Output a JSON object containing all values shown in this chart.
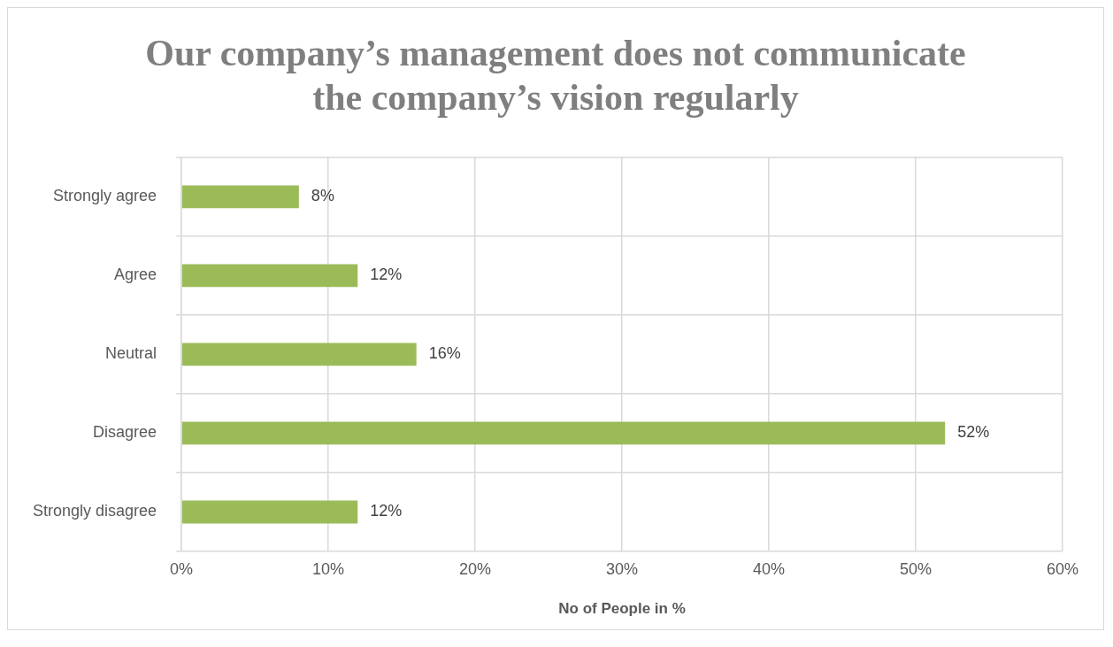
{
  "chart_data": {
    "type": "bar",
    "orientation": "horizontal",
    "title": "Our company’s management does not communicate the company’s vision regularly",
    "xlabel": "No of People in %",
    "categories": [
      "Strongly agree",
      "Agree",
      "Neutral",
      "Disagree",
      "Strongly disagree"
    ],
    "values": [
      8,
      12,
      16,
      52,
      12
    ],
    "value_labels": [
      "8%",
      "12%",
      "16%",
      "52%",
      "12%"
    ],
    "color": "#9bbb59",
    "xlim": [
      0,
      60
    ],
    "xticks": [
      {
        "value": 0,
        "label": "0%"
      },
      {
        "value": 10,
        "label": "10%"
      },
      {
        "value": 20,
        "label": "20%"
      },
      {
        "value": 30,
        "label": "30%"
      },
      {
        "value": 40,
        "label": "40%"
      },
      {
        "value": 50,
        "label": "50%"
      },
      {
        "value": 60,
        "label": "60%"
      }
    ],
    "grid": true,
    "legend": false
  }
}
